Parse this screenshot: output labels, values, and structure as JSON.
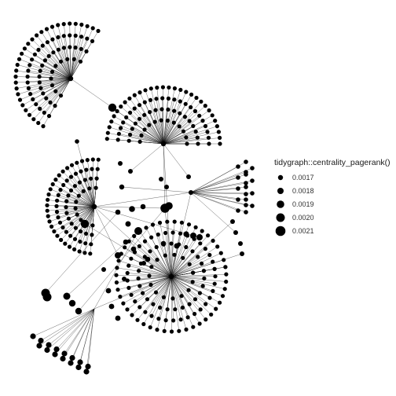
{
  "legend": {
    "title": "tidygraph::centrality_pagerank()",
    "entries": [
      {
        "label": "0.0017",
        "value": 0.0017
      },
      {
        "label": "0.0018",
        "value": 0.0018
      },
      {
        "label": "0.0019",
        "value": 0.0019
      },
      {
        "label": "0.0020",
        "value": 0.002
      },
      {
        "label": "0.0021",
        "value": 0.0021
      }
    ]
  },
  "colors": {
    "node": "#000000",
    "edge": "#000000",
    "background": "#ffffff"
  }
}
